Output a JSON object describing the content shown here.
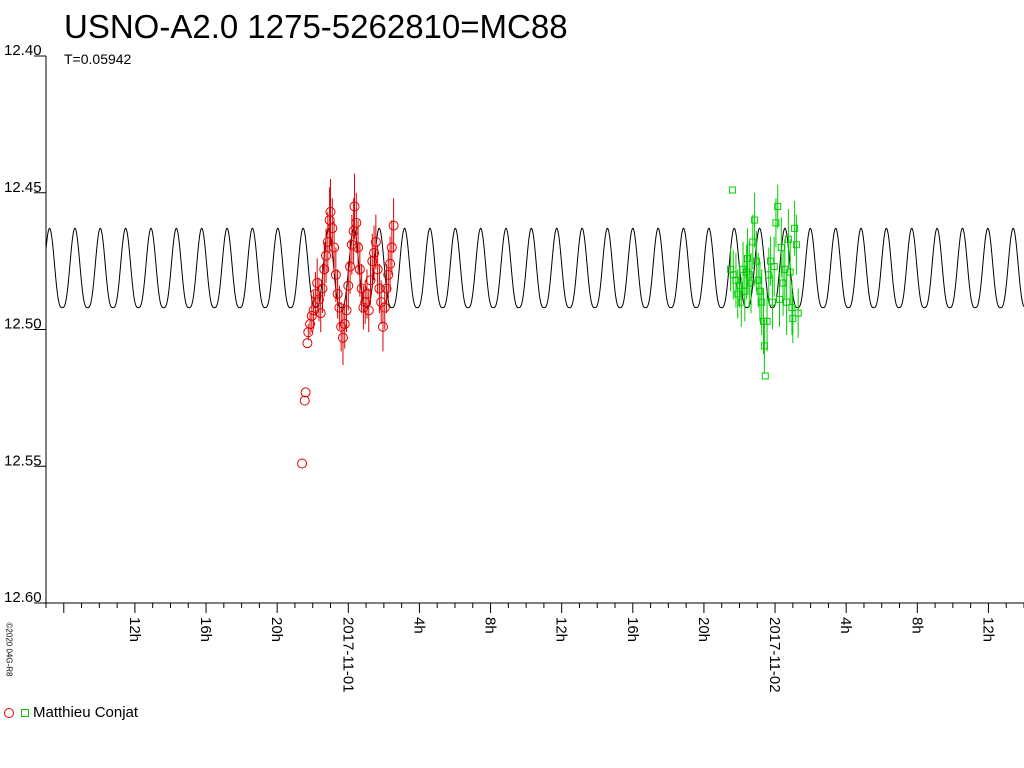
{
  "chart_data": {
    "type": "scatter",
    "title": "USNO-A2.0 1275-5262810=MC88",
    "subtitle": "T=0.05942",
    "ylim": [
      12.4,
      12.6
    ],
    "y_inverted": true,
    "yticks": [
      "12.40",
      "12.45",
      "12.50",
      "12.55",
      "12.60"
    ],
    "xlim_hours": [
      7.0,
      62.0
    ],
    "xticks": [
      {
        "h": 12,
        "label": "12h"
      },
      {
        "h": 16,
        "label": "16h"
      },
      {
        "h": 20,
        "label": "20h"
      },
      {
        "h": 24,
        "label": "2017-11-01"
      },
      {
        "h": 28,
        "label": "4h"
      },
      {
        "h": 32,
        "label": "8h"
      },
      {
        "h": 36,
        "label": "12h"
      },
      {
        "h": 40,
        "label": "16h"
      },
      {
        "h": 44,
        "label": "20h"
      },
      {
        "h": 48,
        "label": "2017-11-02"
      },
      {
        "h": 52,
        "label": "4h"
      },
      {
        "h": 56,
        "label": "8h"
      },
      {
        "h": 60,
        "label": "12h"
      }
    ],
    "model_curve": {
      "period_days": 0.05942,
      "mag_min": 12.463,
      "mag_max": 12.492
    },
    "series": [
      {
        "name": "Matthieu Conjat",
        "color": "#e00000",
        "marker": "circle",
        "points": [
          [
            21.4,
            12.549,
            0.0
          ],
          [
            21.55,
            12.526,
            0.0
          ],
          [
            21.6,
            12.523,
            0.0
          ],
          [
            21.7,
            12.505,
            0.0
          ],
          [
            21.75,
            12.501,
            0.003
          ],
          [
            21.85,
            12.498,
            0.004
          ],
          [
            21.95,
            12.495,
            0.006
          ],
          [
            22.05,
            12.493,
            0.007
          ],
          [
            22.15,
            12.487,
            0.008
          ],
          [
            22.25,
            12.483,
            0.009
          ],
          [
            22.35,
            12.489,
            0.008
          ],
          [
            22.45,
            12.494,
            0.007
          ],
          [
            22.55,
            12.485,
            0.009
          ],
          [
            22.65,
            12.478,
            0.01
          ],
          [
            22.75,
            12.473,
            0.01
          ],
          [
            22.85,
            12.468,
            0.011
          ],
          [
            22.95,
            12.46,
            0.012
          ],
          [
            23.0,
            12.457,
            0.012
          ],
          [
            23.1,
            12.463,
            0.011
          ],
          [
            23.2,
            12.47,
            0.01
          ],
          [
            23.3,
            12.48,
            0.01
          ],
          [
            23.4,
            12.487,
            0.009
          ],
          [
            23.5,
            12.492,
            0.008
          ],
          [
            23.6,
            12.499,
            0.009
          ],
          [
            23.7,
            12.503,
            0.01
          ],
          [
            23.8,
            12.498,
            0.009
          ],
          [
            23.9,
            12.493,
            0.008
          ],
          [
            24.0,
            12.484,
            0.009
          ],
          [
            24.1,
            12.477,
            0.01
          ],
          [
            24.2,
            12.469,
            0.011
          ],
          [
            24.3,
            12.464,
            0.012
          ],
          [
            24.35,
            12.455,
            0.012
          ],
          [
            24.45,
            12.461,
            0.011
          ],
          [
            24.55,
            12.47,
            0.01
          ],
          [
            24.65,
            12.478,
            0.01
          ],
          [
            24.75,
            12.485,
            0.009
          ],
          [
            24.85,
            12.492,
            0.008
          ],
          [
            24.95,
            12.49,
            0.008
          ],
          [
            25.05,
            12.487,
            0.009
          ],
          [
            25.15,
            12.493,
            0.008
          ],
          [
            25.25,
            12.482,
            0.009
          ],
          [
            25.35,
            12.475,
            0.01
          ],
          [
            25.45,
            12.472,
            0.01
          ],
          [
            25.55,
            12.468,
            0.01
          ],
          [
            25.65,
            12.478,
            0.009
          ],
          [
            25.75,
            12.485,
            0.009
          ],
          [
            25.85,
            12.49,
            0.008
          ],
          [
            25.95,
            12.499,
            0.009
          ],
          [
            26.05,
            12.492,
            0.008
          ],
          [
            26.15,
            12.485,
            0.009
          ],
          [
            26.25,
            12.48,
            0.009
          ],
          [
            26.35,
            12.476,
            0.01
          ],
          [
            26.45,
            12.47,
            0.01
          ],
          [
            26.55,
            12.462,
            0.01
          ]
        ]
      },
      {
        "name": "Matthieu Conjat",
        "color": "#00cc00",
        "marker": "square",
        "points": [
          [
            45.6,
            12.449,
            0.0
          ],
          [
            45.5,
            12.478,
            0.008
          ],
          [
            45.65,
            12.48,
            0.009
          ],
          [
            45.8,
            12.482,
            0.01
          ],
          [
            45.9,
            12.487,
            0.009
          ],
          [
            46.0,
            12.484,
            0.008
          ],
          [
            46.1,
            12.49,
            0.009
          ],
          [
            46.2,
            12.478,
            0.01
          ],
          [
            46.3,
            12.486,
            0.011
          ],
          [
            46.4,
            12.479,
            0.01
          ],
          [
            46.45,
            12.474,
            0.011
          ],
          [
            46.55,
            12.48,
            0.012
          ],
          [
            46.65,
            12.483,
            0.011
          ],
          [
            46.75,
            12.468,
            0.01
          ],
          [
            46.85,
            12.46,
            0.01
          ],
          [
            46.95,
            12.475,
            0.011
          ],
          [
            47.05,
            12.482,
            0.01
          ],
          [
            47.15,
            12.486,
            0.011
          ],
          [
            47.25,
            12.49,
            0.012
          ],
          [
            47.35,
            12.497,
            0.012
          ],
          [
            47.4,
            12.506,
            0.01
          ],
          [
            47.45,
            12.517,
            0.0
          ],
          [
            47.55,
            12.497,
            0.011
          ],
          [
            47.65,
            12.48,
            0.01
          ],
          [
            47.75,
            12.475,
            0.009
          ],
          [
            47.85,
            12.49,
            0.01
          ],
          [
            47.95,
            12.477,
            0.011
          ],
          [
            48.05,
            12.461,
            0.009
          ],
          [
            48.15,
            12.455,
            0.008
          ],
          [
            48.25,
            12.489,
            0.01
          ],
          [
            48.35,
            12.47,
            0.011
          ],
          [
            48.45,
            12.483,
            0.012
          ],
          [
            48.55,
            12.478,
            0.011
          ],
          [
            48.65,
            12.49,
            0.012
          ],
          [
            48.75,
            12.467,
            0.011
          ],
          [
            48.85,
            12.479,
            0.012
          ],
          [
            48.95,
            12.492,
            0.01
          ],
          [
            49.0,
            12.496,
            0.009
          ],
          [
            49.1,
            12.463,
            0.01
          ],
          [
            49.2,
            12.469,
            0.011
          ],
          [
            49.3,
            12.494,
            0.009
          ]
        ]
      }
    ],
    "legend_position": "bottom-left"
  },
  "copyright": "©2020 04G-R8"
}
